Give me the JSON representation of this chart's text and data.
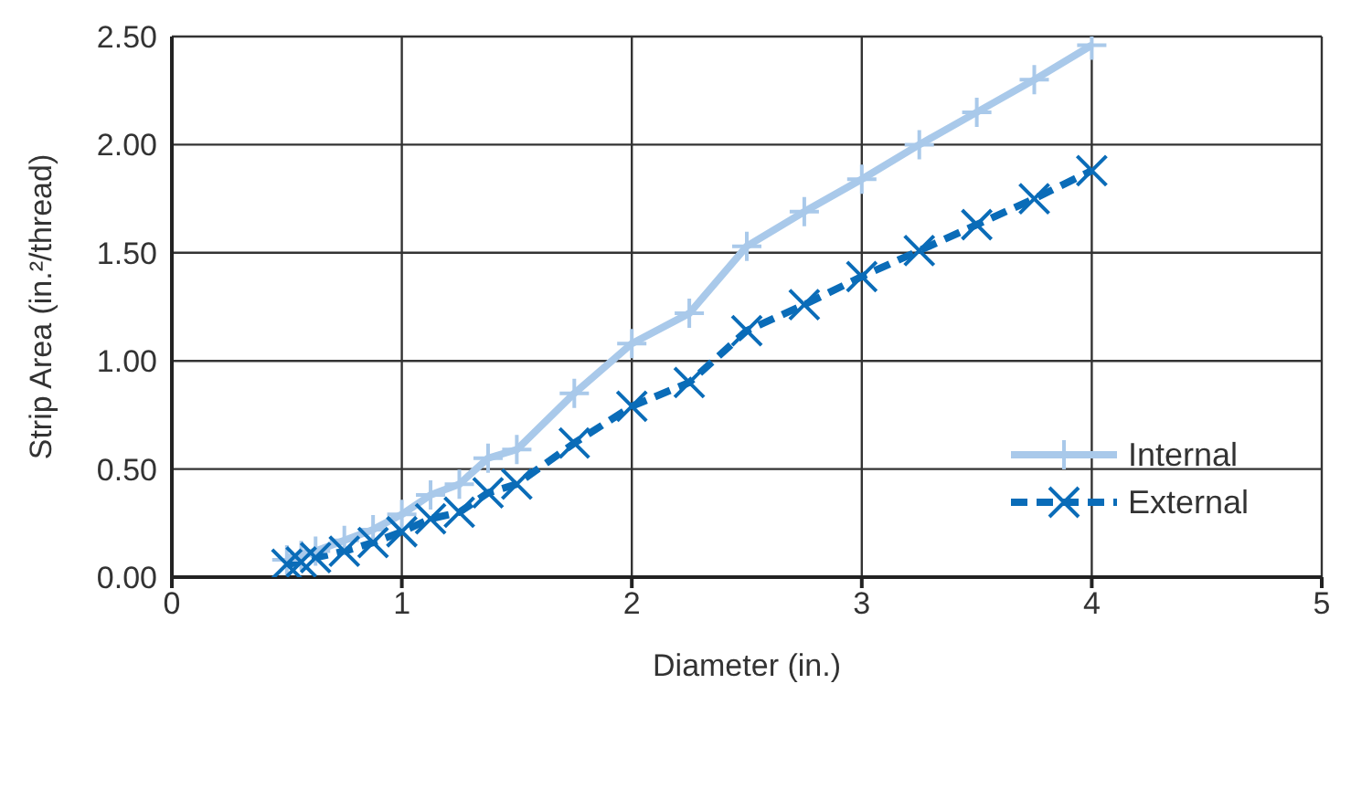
{
  "chart_data": {
    "type": "line",
    "xlabel": "Diameter (in.)",
    "ylabel": "Strip Area (in.²/thread)",
    "xlim": [
      0,
      5
    ],
    "xticks": [
      0,
      1,
      2,
      3,
      4,
      5
    ],
    "ylim": [
      0,
      2.5
    ],
    "yticks": [
      {
        "value": 0,
        "label": "0.00"
      },
      {
        "value": 0.5,
        "label": "0.50"
      },
      {
        "value": 1,
        "label": "1.00"
      },
      {
        "value": 1.5,
        "label": "1.50"
      },
      {
        "value": 2,
        "label": "2.00"
      },
      {
        "value": 2.5,
        "label": "2.50"
      }
    ],
    "grid": true,
    "legend": "right",
    "x": [
      0.5,
      0.5625,
      0.625,
      0.75,
      0.875,
      1,
      1.125,
      1.25,
      1.375,
      1.5,
      1.75,
      2,
      2.25,
      2.5,
      2.75,
      3,
      3.25,
      3.5,
      3.75,
      4
    ],
    "series": [
      {
        "name": "Internal",
        "color": "#a9c9ea",
        "marker": "plus",
        "line_style": "solid",
        "values": [
          0.08,
          0.1,
          0.12,
          0.17,
          0.22,
          0.29,
          0.38,
          0.43,
          0.55,
          0.59,
          0.85,
          1.08,
          1.22,
          1.53,
          1.69,
          1.84,
          2.0,
          2.15,
          2.3,
          2.46
        ]
      },
      {
        "name": "External",
        "color": "#0a6cb8",
        "marker": "cross",
        "line_style": "dashed",
        "values": [
          0.06,
          0.07,
          0.09,
          0.12,
          0.16,
          0.21,
          0.27,
          0.3,
          0.39,
          0.43,
          0.62,
          0.79,
          0.9,
          1.14,
          1.26,
          1.39,
          1.51,
          1.63,
          1.75,
          1.88
        ]
      }
    ]
  }
}
